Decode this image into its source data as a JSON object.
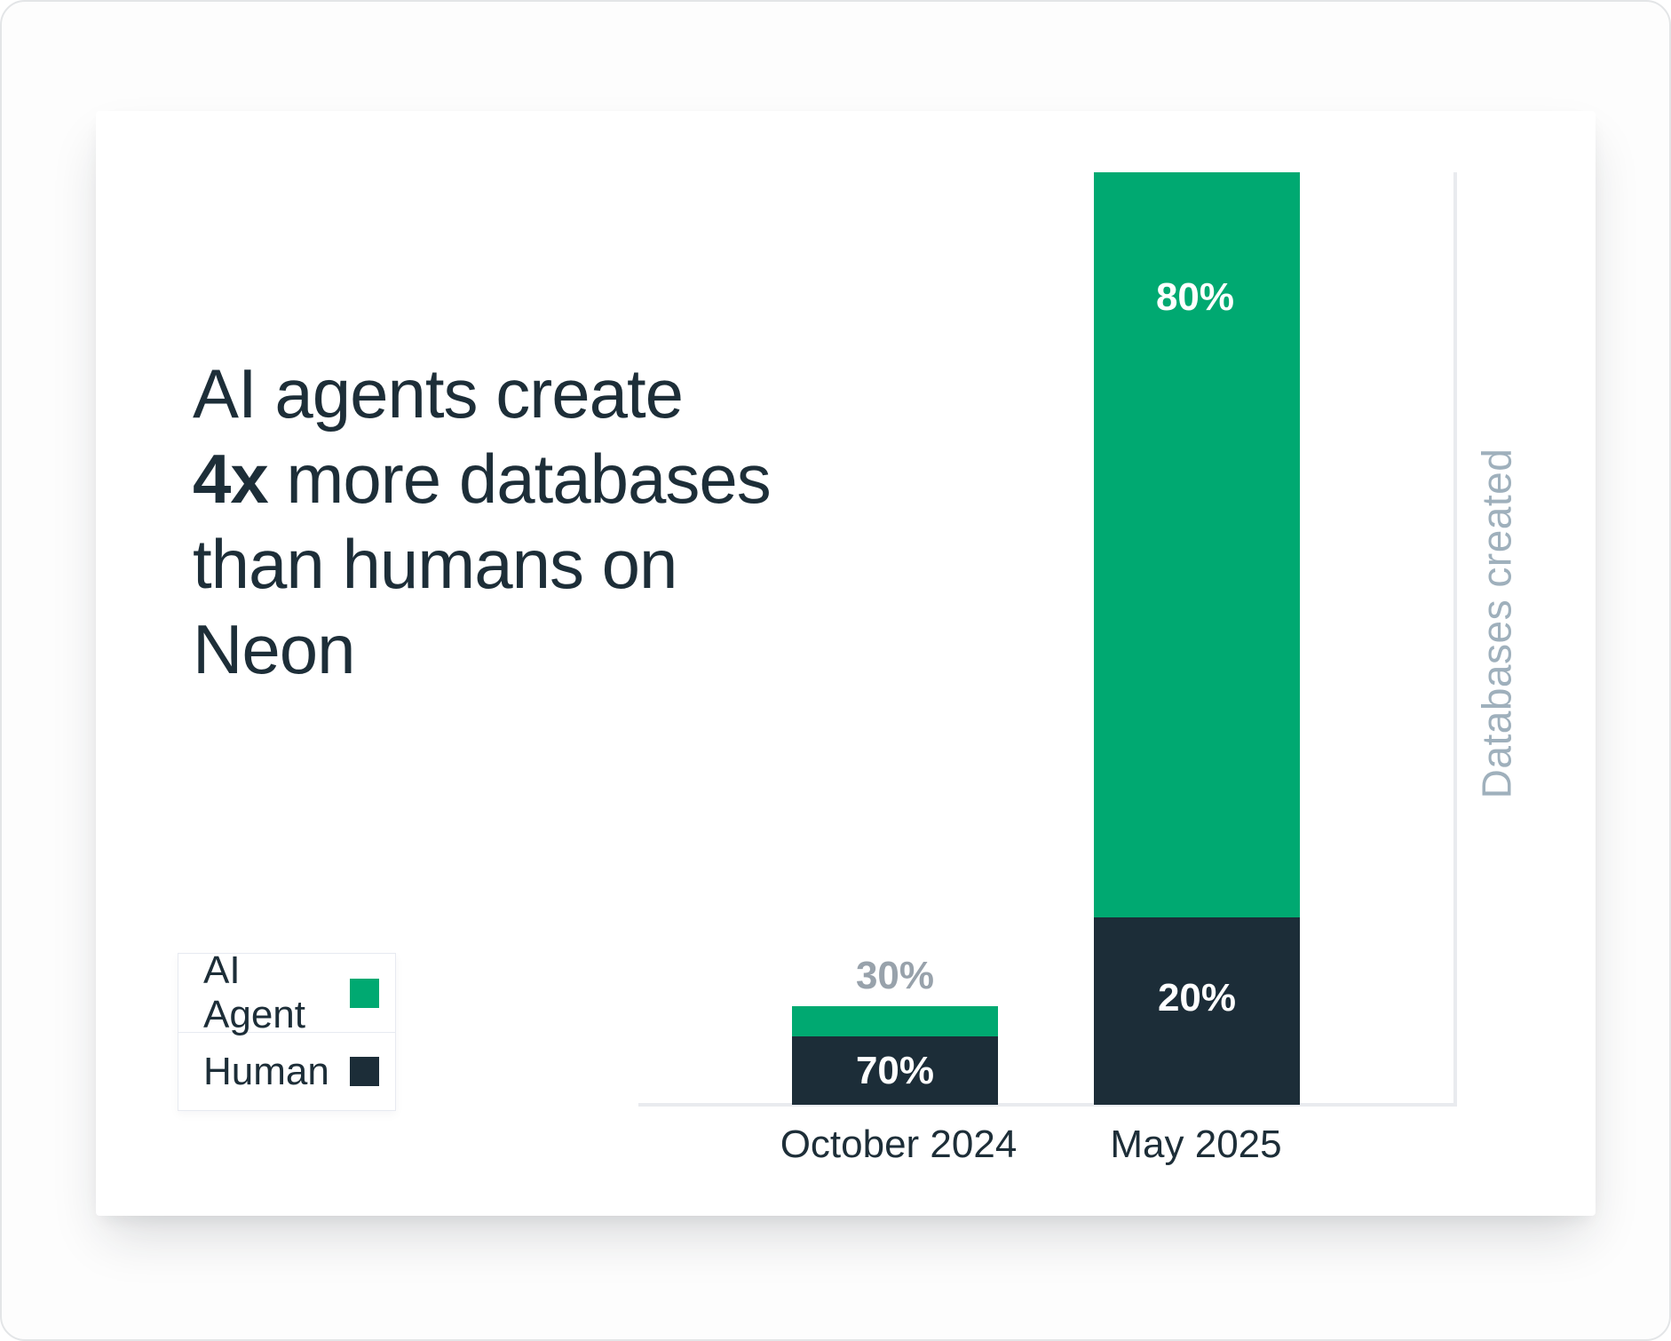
{
  "headline": {
    "line1": "AI agents create",
    "bold": "4x",
    "line2_rest": " more databases",
    "line3": "than humans on",
    "line4": "Neon"
  },
  "chart_data": {
    "type": "bar",
    "stacked": true,
    "title": "AI agents create 4x more databases than humans on Neon",
    "categories": [
      "October 2024",
      "May 2025"
    ],
    "series": [
      {
        "name": "AI Agent",
        "color": "#00a971",
        "values_pct": [
          30,
          80
        ],
        "labels": [
          "30%",
          "80%"
        ]
      },
      {
        "name": "Human",
        "color": "#1c2d38",
        "values_pct": [
          70,
          20
        ],
        "labels": [
          "70%",
          "20%"
        ]
      }
    ],
    "ylabel": "Databases created",
    "xlabel": "",
    "value_label_color_inside": "#ffffff",
    "value_label_color_outside": "#98a2ab",
    "axis_line_color": "#e9ebef",
    "tick_label_color": "#1d2e38",
    "ylabel_color": "#9fb0bc",
    "relative_bar_heights": [
      0.105,
      1.0
    ],
    "grid": false,
    "legend_position": "left-middle",
    "y_axis_side": "right"
  }
}
